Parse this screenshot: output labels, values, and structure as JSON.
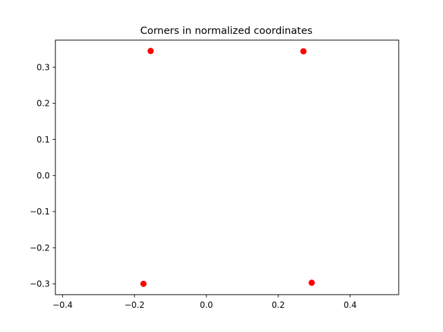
{
  "chart_data": {
    "type": "scatter",
    "title": "Corners in normalized coordinates",
    "xlabel": "",
    "ylabel": "",
    "xlim": [
      -0.42,
      0.535
    ],
    "ylim": [
      -0.33,
      0.375
    ],
    "xticks": [
      -0.4,
      -0.2,
      0.0,
      0.2,
      0.4
    ],
    "xtick_labels": [
      "−0.4",
      "−0.2",
      "0.0",
      "0.2",
      "0.4"
    ],
    "yticks": [
      -0.3,
      -0.2,
      -0.1,
      0.0,
      0.1,
      0.2,
      0.3
    ],
    "ytick_labels": [
      "−0.3",
      "−0.2",
      "−0.1",
      "0.0",
      "0.1",
      "0.2",
      "0.3"
    ],
    "grid": false,
    "series": [
      {
        "color": "#ff0000",
        "marker": "circle",
        "points": [
          {
            "x": -0.155,
            "y": 0.345
          },
          {
            "x": 0.27,
            "y": 0.344
          },
          {
            "x": -0.175,
            "y": -0.3
          },
          {
            "x": 0.293,
            "y": -0.297
          }
        ]
      }
    ]
  }
}
